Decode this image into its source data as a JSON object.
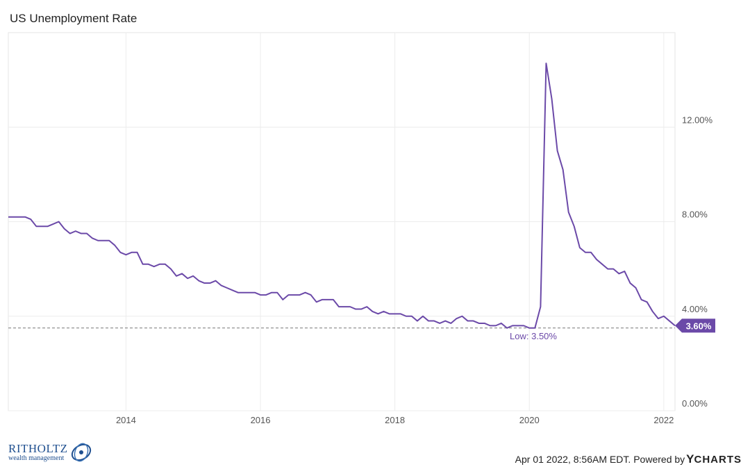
{
  "chart_data": {
    "type": "line",
    "title": "US Unemployment Rate",
    "x_ticks": [
      "2014",
      "2016",
      "2018",
      "2020",
      "2022"
    ],
    "y_ticks": [
      "0.00%",
      "4.00%",
      "8.00%",
      "12.00%"
    ],
    "xlim": [
      "2012-04",
      "2022-03"
    ],
    "ylim": [
      0,
      16
    ],
    "grid": true,
    "series": [
      {
        "color": "#6b49a8",
        "x": [
          "2012-04",
          "2012-05",
          "2012-06",
          "2012-07",
          "2012-08",
          "2012-09",
          "2012-10",
          "2012-11",
          "2012-12",
          "2013-01",
          "2013-02",
          "2013-03",
          "2013-04",
          "2013-05",
          "2013-06",
          "2013-07",
          "2013-08",
          "2013-09",
          "2013-10",
          "2013-11",
          "2013-12",
          "2014-01",
          "2014-02",
          "2014-03",
          "2014-04",
          "2014-05",
          "2014-06",
          "2014-07",
          "2014-08",
          "2014-09",
          "2014-10",
          "2014-11",
          "2014-12",
          "2015-01",
          "2015-02",
          "2015-03",
          "2015-04",
          "2015-05",
          "2015-06",
          "2015-07",
          "2015-08",
          "2015-09",
          "2015-10",
          "2015-11",
          "2015-12",
          "2016-01",
          "2016-02",
          "2016-03",
          "2016-04",
          "2016-05",
          "2016-06",
          "2016-07",
          "2016-08",
          "2016-09",
          "2016-10",
          "2016-11",
          "2016-12",
          "2017-01",
          "2017-02",
          "2017-03",
          "2017-04",
          "2017-05",
          "2017-06",
          "2017-07",
          "2017-08",
          "2017-09",
          "2017-10",
          "2017-11",
          "2017-12",
          "2018-01",
          "2018-02",
          "2018-03",
          "2018-04",
          "2018-05",
          "2018-06",
          "2018-07",
          "2018-08",
          "2018-09",
          "2018-10",
          "2018-11",
          "2018-12",
          "2019-01",
          "2019-02",
          "2019-03",
          "2019-04",
          "2019-05",
          "2019-06",
          "2019-07",
          "2019-08",
          "2019-09",
          "2019-10",
          "2019-11",
          "2019-12",
          "2020-01",
          "2020-02",
          "2020-03",
          "2020-04",
          "2020-05",
          "2020-06",
          "2020-07",
          "2020-08",
          "2020-09",
          "2020-10",
          "2020-11",
          "2020-12",
          "2021-01",
          "2021-02",
          "2021-03",
          "2021-04",
          "2021-05",
          "2021-06",
          "2021-07",
          "2021-08",
          "2021-09",
          "2021-10",
          "2021-11",
          "2021-12",
          "2022-01",
          "2022-02",
          "2022-03"
        ],
        "values": [
          8.2,
          8.2,
          8.2,
          8.2,
          8.1,
          7.8,
          7.8,
          7.8,
          7.9,
          8.0,
          7.7,
          7.5,
          7.6,
          7.5,
          7.5,
          7.3,
          7.2,
          7.2,
          7.2,
          7.0,
          6.7,
          6.6,
          6.7,
          6.7,
          6.2,
          6.2,
          6.1,
          6.2,
          6.2,
          6.0,
          5.7,
          5.8,
          5.6,
          5.7,
          5.5,
          5.4,
          5.4,
          5.5,
          5.3,
          5.2,
          5.1,
          5.0,
          5.0,
          5.0,
          5.0,
          4.9,
          4.9,
          5.0,
          5.0,
          4.7,
          4.9,
          4.9,
          4.9,
          5.0,
          4.9,
          4.6,
          4.7,
          4.7,
          4.7,
          4.4,
          4.4,
          4.4,
          4.3,
          4.3,
          4.4,
          4.2,
          4.1,
          4.2,
          4.1,
          4.1,
          4.1,
          4.0,
          4.0,
          3.8,
          4.0,
          3.8,
          3.8,
          3.7,
          3.8,
          3.7,
          3.9,
          4.0,
          3.8,
          3.8,
          3.7,
          3.7,
          3.6,
          3.6,
          3.7,
          3.5,
          3.6,
          3.6,
          3.6,
          3.5,
          3.5,
          4.4,
          14.7,
          13.2,
          11.0,
          10.2,
          8.4,
          7.8,
          6.9,
          6.7,
          6.7,
          6.4,
          6.2,
          6.0,
          6.0,
          5.8,
          5.9,
          5.4,
          5.2,
          4.7,
          4.6,
          4.2,
          3.9,
          4.0,
          3.8,
          3.6
        ]
      }
    ],
    "low_value": 3.5,
    "low_label": "Low: 3.50%",
    "last_label": "3.60%"
  },
  "footer": {
    "timestamp": "Apr 01 2022, 8:56AM EDT.",
    "powered_by": "Powered by",
    "ycharts_y": "Y",
    "ycharts_rest": "CHARTS"
  },
  "brand": {
    "name": "RITHOLTZ",
    "tagline": "wealth management"
  }
}
